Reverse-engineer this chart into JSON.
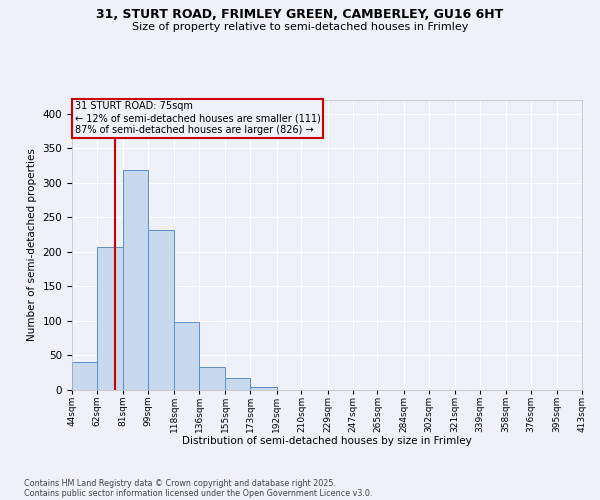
{
  "title1": "31, STURT ROAD, FRIMLEY GREEN, CAMBERLEY, GU16 6HT",
  "title2": "Size of property relative to semi-detached houses in Frimley",
  "xlabel": "Distribution of semi-detached houses by size in Frimley",
  "ylabel": "Number of semi-detached properties",
  "bin_labels": [
    "44sqm",
    "62sqm",
    "81sqm",
    "99sqm",
    "118sqm",
    "136sqm",
    "155sqm",
    "173sqm",
    "192sqm",
    "210sqm",
    "229sqm",
    "247sqm",
    "265sqm",
    "284sqm",
    "302sqm",
    "321sqm",
    "339sqm",
    "358sqm",
    "376sqm",
    "395sqm",
    "413sqm"
  ],
  "bar_heights": [
    40,
    207,
    318,
    232,
    99,
    34,
    17,
    5,
    0,
    0,
    0,
    0,
    0,
    0,
    0,
    0,
    0,
    0,
    0,
    0
  ],
  "bar_color": "#c8d9ee",
  "bar_edge_color": "#5b8fc9",
  "property_sqm": 75,
  "annotation_title": "31 STURT ROAD: 75sqm",
  "annotation_line1": "← 12% of semi-detached houses are smaller (111)",
  "annotation_line2": "87% of semi-detached houses are larger (826) →",
  "annotation_box_color": "#cc0000",
  "ylim": [
    0,
    420
  ],
  "yticks": [
    0,
    50,
    100,
    150,
    200,
    250,
    300,
    350,
    400
  ],
  "footnote1": "Contains HM Land Registry data © Crown copyright and database right 2025.",
  "footnote2": "Contains public sector information licensed under the Open Government Licence v3.0.",
  "background_color": "#eef2f8",
  "grid_color": "#ffffff",
  "bin_edges": [
    44,
    62,
    81,
    99,
    118,
    136,
    155,
    173,
    192,
    210,
    229,
    247,
    265,
    284,
    302,
    321,
    339,
    358,
    376,
    395,
    413
  ]
}
